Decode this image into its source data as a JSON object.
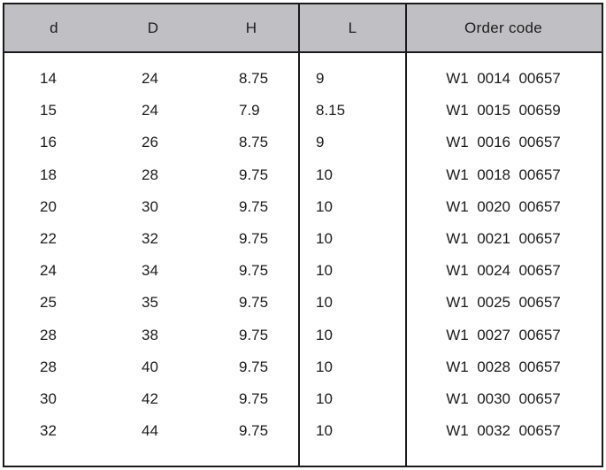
{
  "colors": {
    "header_bg": "#c0c0c4",
    "border": "#1a1a1a",
    "text": "#1c1c1c",
    "page_bg": "#ffffff"
  },
  "table": {
    "headers": {
      "d": "d",
      "D": "D",
      "H": "H",
      "L": "L",
      "order": "Order code"
    },
    "rows": [
      {
        "d": "14",
        "D": "24",
        "H": "8.75",
        "L": "9",
        "order": "W1  0014  00657"
      },
      {
        "d": "15",
        "D": "24",
        "H": "7.9",
        "L": "8.15",
        "order": "W1  0015  00659"
      },
      {
        "d": "16",
        "D": "26",
        "H": "8.75",
        "L": "9",
        "order": "W1  0016  00657"
      },
      {
        "d": "18",
        "D": "28",
        "H": "9.75",
        "L": "10",
        "order": "W1  0018  00657"
      },
      {
        "d": "20",
        "D": "30",
        "H": "9.75",
        "L": "10",
        "order": "W1  0020  00657"
      },
      {
        "d": "22",
        "D": "32",
        "H": "9.75",
        "L": "10",
        "order": "W1  0021  00657"
      },
      {
        "d": "24",
        "D": "34",
        "H": "9.75",
        "L": "10",
        "order": "W1  0024  00657"
      },
      {
        "d": "25",
        "D": "35",
        "H": "9.75",
        "L": "10",
        "order": "W1  0025  00657"
      },
      {
        "d": "28",
        "D": "38",
        "H": "9.75",
        "L": "10",
        "order": "W1  0027  00657"
      },
      {
        "d": "28",
        "D": "40",
        "H": "9.75",
        "L": "10",
        "order": "W1  0028  00657"
      },
      {
        "d": "30",
        "D": "42",
        "H": "9.75",
        "L": "10",
        "order": "W1  0030  00657"
      },
      {
        "d": "32",
        "D": "44",
        "H": "9.75",
        "L": "10",
        "order": "W1  0032  00657"
      }
    ]
  }
}
